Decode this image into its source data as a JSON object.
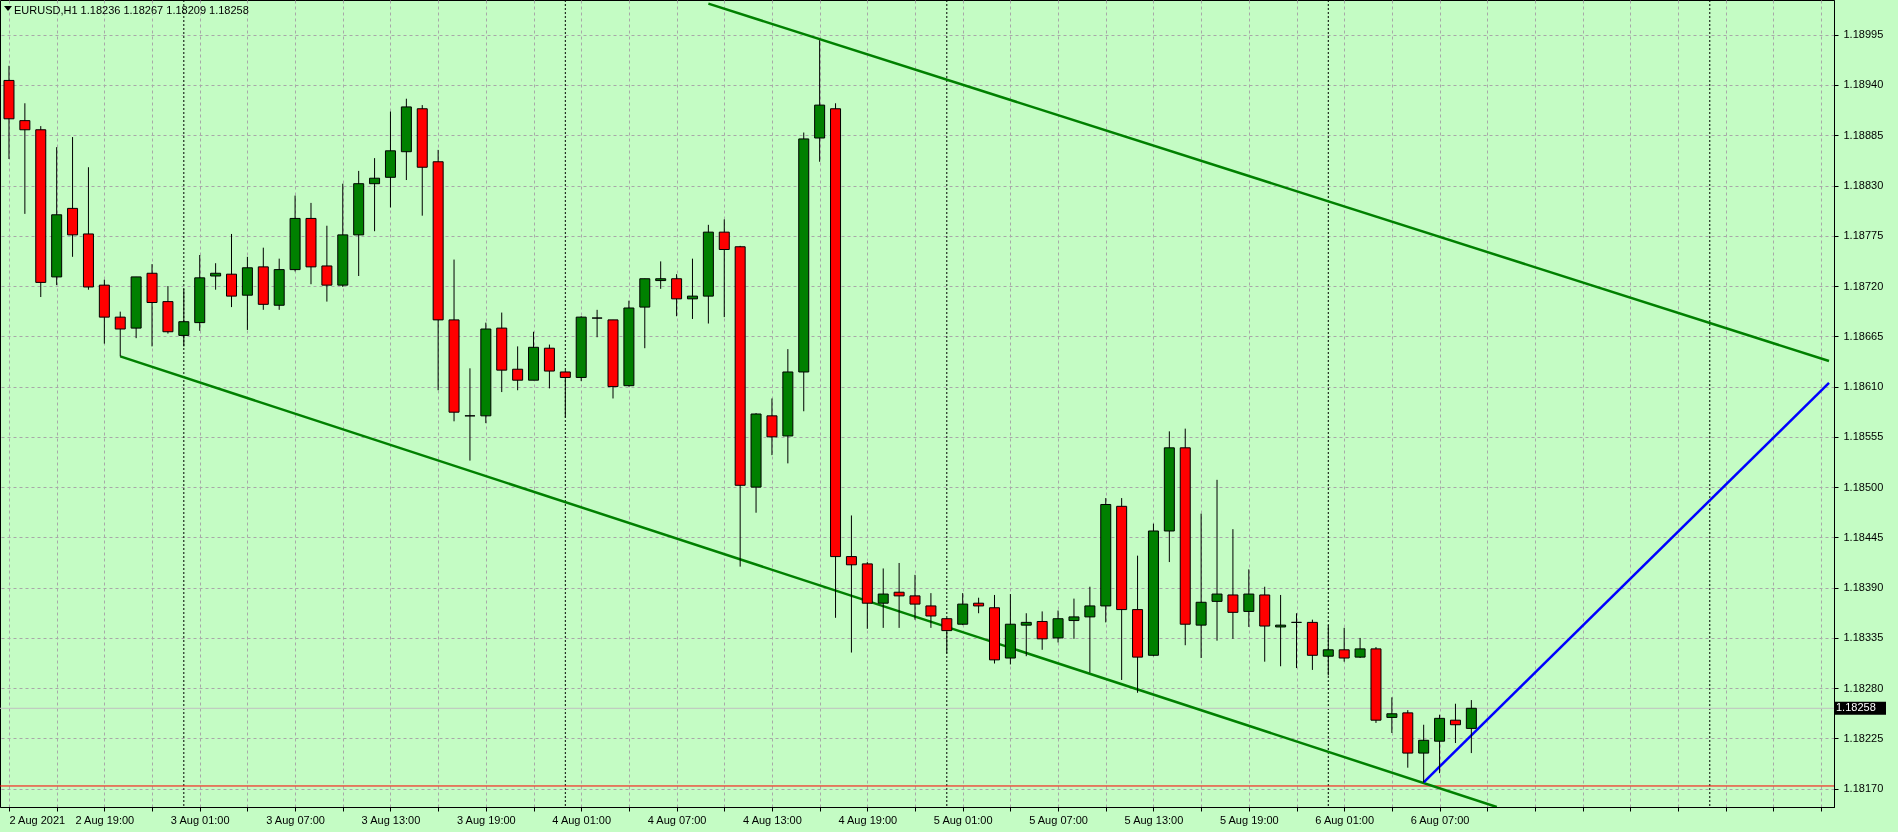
{
  "chart_data": {
    "type": "candlestick",
    "title": "EURUSD,H1  1.18236 1.18267 1.18209 1.18258",
    "x": [
      "2021-08-02T13:00",
      "2021-08-02T14:00",
      "2021-08-02T15:00",
      "2021-08-02T16:00",
      "2021-08-02T17:00",
      "2021-08-02T18:00",
      "2021-08-02T19:00",
      "2021-08-02T20:00",
      "2021-08-02T21:00",
      "2021-08-02T22:00",
      "2021-08-02T23:00",
      "2021-08-03T00:00",
      "2021-08-03T01:00",
      "2021-08-03T02:00",
      "2021-08-03T03:00",
      "2021-08-03T04:00",
      "2021-08-03T05:00",
      "2021-08-03T06:00",
      "2021-08-03T07:00",
      "2021-08-03T08:00",
      "2021-08-03T09:00",
      "2021-08-03T10:00",
      "2021-08-03T11:00",
      "2021-08-03T12:00",
      "2021-08-03T13:00",
      "2021-08-03T14:00",
      "2021-08-03T15:00",
      "2021-08-03T16:00",
      "2021-08-03T17:00",
      "2021-08-03T18:00",
      "2021-08-03T19:00",
      "2021-08-03T20:00",
      "2021-08-03T21:00",
      "2021-08-03T22:00",
      "2021-08-03T23:00",
      "2021-08-04T00:00",
      "2021-08-04T01:00",
      "2021-08-04T02:00",
      "2021-08-04T03:00",
      "2021-08-04T04:00",
      "2021-08-04T05:00",
      "2021-08-04T06:00",
      "2021-08-04T07:00",
      "2021-08-04T08:00",
      "2021-08-04T09:00",
      "2021-08-04T10:00",
      "2021-08-04T11:00",
      "2021-08-04T12:00",
      "2021-08-04T13:00",
      "2021-08-04T14:00",
      "2021-08-04T15:00",
      "2021-08-04T16:00",
      "2021-08-04T17:00",
      "2021-08-04T18:00",
      "2021-08-04T19:00",
      "2021-08-04T20:00",
      "2021-08-04T21:00",
      "2021-08-04T22:00",
      "2021-08-04T23:00",
      "2021-08-05T00:00",
      "2021-08-05T01:00",
      "2021-08-05T02:00",
      "2021-08-05T03:00",
      "2021-08-05T04:00",
      "2021-08-05T05:00",
      "2021-08-05T06:00",
      "2021-08-05T07:00",
      "2021-08-05T08:00",
      "2021-08-05T09:00",
      "2021-08-05T10:00",
      "2021-08-05T11:00",
      "2021-08-05T12:00",
      "2021-08-05T13:00",
      "2021-08-05T14:00",
      "2021-08-05T15:00",
      "2021-08-05T16:00",
      "2021-08-05T17:00",
      "2021-08-05T18:00",
      "2021-08-05T19:00",
      "2021-08-05T20:00",
      "2021-08-05T21:00",
      "2021-08-05T22:00",
      "2021-08-05T23:00",
      "2021-08-06T00:00",
      "2021-08-06T01:00",
      "2021-08-06T02:00",
      "2021-08-06T03:00",
      "2021-08-06T04:00",
      "2021-08-06T05:00",
      "2021-08-06T06:00",
      "2021-08-06T07:00",
      "2021-08-06T08:00",
      "2021-08-06T09:00"
    ],
    "ohlc": [
      [
        1.18945,
        1.18961,
        1.18859,
        1.18903
      ],
      [
        1.18901,
        1.1892,
        1.18799,
        1.18891
      ],
      [
        1.18891,
        1.18895,
        1.18708,
        1.18724
      ],
      [
        1.1873,
        1.18872,
        1.18721,
        1.18798
      ],
      [
        1.18805,
        1.18883,
        1.18752,
        1.18776
      ],
      [
        1.18777,
        1.1885,
        1.18716,
        1.18719
      ],
      [
        1.18721,
        1.18727,
        1.18657,
        1.18686
      ],
      [
        1.18686,
        1.18692,
        1.18643,
        1.18673
      ],
      [
        1.18674,
        1.1873,
        1.18663,
        1.1873
      ],
      [
        1.18734,
        1.18744,
        1.18654,
        1.18702
      ],
      [
        1.18703,
        1.1872,
        1.18668,
        1.1867
      ],
      [
        1.18666,
        1.18717,
        1.18654,
        1.18681
      ],
      [
        1.1868,
        1.18754,
        1.18671,
        1.18729
      ],
      [
        1.18731,
        1.18745,
        1.18716,
        1.18734
      ],
      [
        1.18733,
        1.18777,
        1.18697,
        1.18709
      ],
      [
        1.1871,
        1.18752,
        1.18672,
        1.1874
      ],
      [
        1.18741,
        1.18762,
        1.18694,
        1.187
      ],
      [
        1.18699,
        1.1875,
        1.18694,
        1.18738
      ],
      [
        1.18738,
        1.18819,
        1.18736,
        1.18794
      ],
      [
        1.18794,
        1.18811,
        1.18722,
        1.18741
      ],
      [
        1.18742,
        1.18786,
        1.18703,
        1.18721
      ],
      [
        1.18721,
        1.18832,
        1.18719,
        1.18776
      ],
      [
        1.18776,
        1.18846,
        1.18731,
        1.18832
      ],
      [
        1.18832,
        1.1886,
        1.1878,
        1.18838
      ],
      [
        1.18839,
        1.18911,
        1.18806,
        1.18868
      ],
      [
        1.18867,
        1.18925,
        1.18836,
        1.18916
      ],
      [
        1.18914,
        1.18918,
        1.18797,
        1.1885
      ],
      [
        1.18856,
        1.18869,
        1.18606,
        1.18683
      ],
      [
        1.18683,
        1.18749,
        1.18572,
        1.18582
      ],
      [
        1.18578,
        1.1863,
        1.18529,
        1.18578
      ],
      [
        1.18578,
        1.1868,
        1.1857,
        1.18673
      ],
      [
        1.18674,
        1.18691,
        1.18604,
        1.18628
      ],
      [
        1.18629,
        1.18654,
        1.18606,
        1.18617
      ],
      [
        1.18617,
        1.1867,
        1.18617,
        1.18653
      ],
      [
        1.18652,
        1.18656,
        1.18608,
        1.18627
      ],
      [
        1.18626,
        1.18628,
        1.18576,
        1.1862
      ],
      [
        1.1862,
        1.18687,
        1.18616,
        1.18686
      ],
      [
        1.18685,
        1.18694,
        1.18664,
        1.18685
      ],
      [
        1.18683,
        1.18683,
        1.18597,
        1.1861
      ],
      [
        1.18611,
        1.18704,
        1.1861,
        1.18696
      ],
      [
        1.18697,
        1.18728,
        1.18652,
        1.18728
      ],
      [
        1.18726,
        1.18747,
        1.18717,
        1.18728
      ],
      [
        1.18728,
        1.18733,
        1.18687,
        1.18706
      ],
      [
        1.18706,
        1.1875,
        1.18684,
        1.18709
      ],
      [
        1.18709,
        1.18787,
        1.18679,
        1.18779
      ],
      [
        1.18779,
        1.18793,
        1.18686,
        1.1876
      ],
      [
        1.18763,
        1.18764,
        1.18413,
        1.18502
      ],
      [
        1.185,
        1.18581,
        1.18472,
        1.1858
      ],
      [
        1.18578,
        1.18597,
        1.18535,
        1.18555
      ],
      [
        1.18556,
        1.18651,
        1.18526,
        1.18626
      ],
      [
        1.18626,
        1.18888,
        1.18583,
        1.18881
      ],
      [
        1.18882,
        1.18989,
        1.18856,
        1.18918
      ],
      [
        1.18914,
        1.1892,
        1.18357,
        1.18424
      ],
      [
        1.18424,
        1.18469,
        1.18319,
        1.18415
      ],
      [
        1.18416,
        1.18418,
        1.18345,
        1.18373
      ],
      [
        1.18373,
        1.18411,
        1.18346,
        1.18383
      ],
      [
        1.18385,
        1.18417,
        1.18346,
        1.18381
      ],
      [
        1.18381,
        1.18404,
        1.18355,
        1.18372
      ],
      [
        1.1837,
        1.18384,
        1.18346,
        1.18359
      ],
      [
        1.18356,
        1.18357,
        1.18318,
        1.18343
      ],
      [
        1.1835,
        1.18384,
        1.18349,
        1.18372
      ],
      [
        1.18373,
        1.18379,
        1.18362,
        1.1837
      ],
      [
        1.18368,
        1.18382,
        1.18307,
        1.18311
      ],
      [
        1.18313,
        1.18383,
        1.18306,
        1.1835
      ],
      [
        1.18349,
        1.18362,
        1.18315,
        1.18352
      ],
      [
        1.18353,
        1.18364,
        1.18322,
        1.18334
      ],
      [
        1.18335,
        1.18365,
        1.1833,
        1.18356
      ],
      [
        1.18354,
        1.18378,
        1.18334,
        1.18358
      ],
      [
        1.18358,
        1.18391,
        1.18297,
        1.1837
      ],
      [
        1.1837,
        1.18488,
        1.18352,
        1.18481
      ],
      [
        1.18479,
        1.18488,
        1.18289,
        1.18366
      ],
      [
        1.18366,
        1.18425,
        1.18275,
        1.18314
      ],
      [
        1.18316,
        1.1846,
        1.18315,
        1.18452
      ],
      [
        1.18452,
        1.18561,
        1.18418,
        1.18543
      ],
      [
        1.18543,
        1.18564,
        1.18327,
        1.1835
      ],
      [
        1.18349,
        1.18471,
        1.18313,
        1.18374
      ],
      [
        1.18375,
        1.18508,
        1.18332,
        1.18383
      ],
      [
        1.18382,
        1.18454,
        1.18334,
        1.18363
      ],
      [
        1.18364,
        1.1841,
        1.18347,
        1.18383
      ],
      [
        1.18382,
        1.18391,
        1.18309,
        1.18348
      ],
      [
        1.18347,
        1.18382,
        1.18304,
        1.18349
      ],
      [
        1.18352,
        1.18362,
        1.18302,
        1.18352
      ],
      [
        1.18352,
        1.18355,
        1.183,
        1.18316
      ],
      [
        1.18315,
        1.18349,
        1.18294,
        1.18322
      ],
      [
        1.18322,
        1.18346,
        1.18309,
        1.18313
      ],
      [
        1.18314,
        1.18335,
        1.18313,
        1.18323
      ],
      [
        1.18323,
        1.18325,
        1.18242,
        1.18245
      ],
      [
        1.18248,
        1.1827,
        1.18231,
        1.18252
      ],
      [
        1.18253,
        1.18256,
        1.18193,
        1.18209
      ],
      [
        1.18209,
        1.1824,
        1.18177,
        1.18223
      ],
      [
        1.18222,
        1.18251,
        1.18187,
        1.18247
      ],
      [
        1.18245,
        1.18263,
        1.1822,
        1.1824
      ],
      [
        1.18236,
        1.18267,
        1.18209,
        1.18258
      ]
    ],
    "colors": [
      "#ff0000",
      "#ff0000",
      "#ff0000",
      "#008000",
      "#ff0000",
      "#ff0000",
      "#ff0000",
      "#ff0000",
      "#008000",
      "#ff0000",
      "#ff0000",
      "#008000",
      "#008000",
      "#008000",
      "#ff0000",
      "#008000",
      "#ff0000",
      "#008000",
      "#008000",
      "#ff0000",
      "#ff0000",
      "#008000",
      "#008000",
      "#008000",
      "#008000",
      "#008000",
      "#ff0000",
      "#ff0000",
      "#ff0000",
      "#000000",
      "#008000",
      "#ff0000",
      "#ff0000",
      "#008000",
      "#ff0000",
      "#ff0000",
      "#008000",
      "#000000",
      "#ff0000",
      "#008000",
      "#008000",
      "#008000",
      "#ff0000",
      "#008000",
      "#008000",
      "#ff0000",
      "#ff0000",
      "#008000",
      "#ff0000",
      "#008000",
      "#008000",
      "#008000",
      "#ff0000",
      "#ff0000",
      "#ff0000",
      "#008000",
      "#ff0000",
      "#ff0000",
      "#ff0000",
      "#ff0000",
      "#008000",
      "#ff0000",
      "#ff0000",
      "#008000",
      "#008000",
      "#ff0000",
      "#008000",
      "#008000",
      "#008000",
      "#008000",
      "#ff0000",
      "#ff0000",
      "#008000",
      "#008000",
      "#ff0000",
      "#008000",
      "#008000",
      "#ff0000",
      "#008000",
      "#ff0000",
      "#008000",
      "#000000",
      "#ff0000",
      "#008000",
      "#ff0000",
      "#008000",
      "#ff0000",
      "#008000",
      "#ff0000",
      "#008000",
      "#008000",
      "#ff0000",
      "#008000"
    ],
    "series": [
      {
        "type": "line",
        "color": "#008000",
        "x": [
          "2021-08-04T09:00",
          "2021-08-07T07:30"
        ],
        "values": [
          1.19029,
          1.18638
        ]
      },
      {
        "type": "line",
        "color": "#008000",
        "x": [
          "2021-08-02T20:00",
          "2021-08-06T10:36"
        ],
        "values": [
          1.18643,
          1.1815
        ]
      },
      {
        "type": "line",
        "color": "#0000ff",
        "x": [
          "2021-08-06T06:00",
          "2021-08-07T07:30"
        ],
        "values": [
          1.18177,
          1.18614
        ]
      }
    ],
    "xlim": [
      "2021-08-02T12:45",
      "2021-08-07T07:30"
    ],
    "xticks": [
      {
        "value": "2021-08-02T13:00",
        "label": "2 Aug 2021"
      },
      {
        "value": "2021-08-02T16:00",
        "label": null
      },
      {
        "value": "2021-08-02T19:00",
        "label": "2 Aug 19:00"
      },
      {
        "value": "2021-08-02T22:00",
        "label": null
      },
      {
        "value": "2021-08-03T01:00",
        "label": "3 Aug 01:00"
      },
      {
        "value": "2021-08-03T04:00",
        "label": null
      },
      {
        "value": "2021-08-03T07:00",
        "label": "3 Aug 07:00"
      },
      {
        "value": "2021-08-03T10:00",
        "label": null
      },
      {
        "value": "2021-08-03T13:00",
        "label": "3 Aug 13:00"
      },
      {
        "value": "2021-08-03T16:00",
        "label": null
      },
      {
        "value": "2021-08-03T19:00",
        "label": "3 Aug 19:00"
      },
      {
        "value": "2021-08-03T22:00",
        "label": null
      },
      {
        "value": "2021-08-04T01:00",
        "label": "4 Aug 01:00"
      },
      {
        "value": "2021-08-04T04:00",
        "label": null
      },
      {
        "value": "2021-08-04T07:00",
        "label": "4 Aug 07:00"
      },
      {
        "value": "2021-08-04T10:00",
        "label": null
      },
      {
        "value": "2021-08-04T13:00",
        "label": "4 Aug 13:00"
      },
      {
        "value": "2021-08-04T16:00",
        "label": null
      },
      {
        "value": "2021-08-04T19:00",
        "label": "4 Aug 19:00"
      },
      {
        "value": "2021-08-04T22:00",
        "label": null
      },
      {
        "value": "2021-08-05T01:00",
        "label": "5 Aug 01:00"
      },
      {
        "value": "2021-08-05T04:00",
        "label": null
      },
      {
        "value": "2021-08-05T07:00",
        "label": "5 Aug 07:00"
      },
      {
        "value": "2021-08-05T10:00",
        "label": null
      },
      {
        "value": "2021-08-05T13:00",
        "label": "5 Aug 13:00"
      },
      {
        "value": "2021-08-05T16:00",
        "label": null
      },
      {
        "value": "2021-08-05T19:00",
        "label": "5 Aug 19:00"
      },
      {
        "value": "2021-08-05T22:00",
        "label": null
      },
      {
        "value": "2021-08-06T01:00",
        "label": "6 Aug 01:00"
      },
      {
        "value": "2021-08-06T04:00",
        "label": null
      },
      {
        "value": "2021-08-06T07:00",
        "label": "6 Aug 07:00"
      },
      {
        "value": "2021-08-06T10:00",
        "label": null
      },
      {
        "value": "2021-08-06T13:00",
        "label": null
      },
      {
        "value": "2021-08-06T16:00",
        "label": null
      },
      {
        "value": "2021-08-06T19:00",
        "label": null
      },
      {
        "value": "2021-08-06T22:00",
        "label": null
      },
      {
        "value": "2021-08-07T01:00",
        "label": null
      },
      {
        "value": "2021-08-07T04:00",
        "label": null
      },
      {
        "value": "2021-08-07T07:00",
        "label": null
      }
    ],
    "ylim": [
      1.1815,
      1.19033
    ],
    "yticks": [
      {
        "value": 1.1817,
        "label": "1.18170"
      },
      {
        "value": 1.18225,
        "label": "1.18225"
      },
      {
        "value": 1.1828,
        "label": "1.18280"
      },
      {
        "value": 1.18335,
        "label": "1.18335"
      },
      {
        "value": 1.1839,
        "label": "1.18390"
      },
      {
        "value": 1.18445,
        "label": "1.18445"
      },
      {
        "value": 1.185,
        "label": "1.18500"
      },
      {
        "value": 1.18555,
        "label": "1.18555"
      },
      {
        "value": 1.1861,
        "label": "1.18610"
      },
      {
        "value": 1.18665,
        "label": "1.18665"
      },
      {
        "value": 1.1872,
        "label": "1.18720"
      },
      {
        "value": 1.18775,
        "label": "1.18775"
      },
      {
        "value": 1.1883,
        "label": "1.18830"
      },
      {
        "value": 1.18885,
        "label": "1.18885"
      },
      {
        "value": 1.1894,
        "label": "1.18940"
      },
      {
        "value": 1.18995,
        "label": "1.18995"
      }
    ],
    "ref_lines": [
      {
        "axis": "x",
        "value": "2021-08-03T00:00",
        "color": "#000000",
        "line_style": "dotted"
      },
      {
        "axis": "x",
        "value": "2021-08-04T00:00",
        "color": "#000000",
        "line_style": "dotted"
      },
      {
        "axis": "x",
        "value": "2021-08-05T00:00",
        "color": "#000000",
        "line_style": "dotted"
      },
      {
        "axis": "x",
        "value": "2021-08-06T00:00",
        "color": "#000000",
        "line_style": "dotted"
      },
      {
        "axis": "x",
        "value": "2021-08-07T00:00",
        "color": "#000000",
        "line_style": "dotted"
      },
      {
        "axis": "y",
        "value": 1.18258,
        "label": "1.18258",
        "color": "#c0c0c0",
        "line_style": "solid"
      },
      {
        "axis": "y",
        "value": 1.18173,
        "color": "#ff0000",
        "line_style": "solid"
      }
    ],
    "grid": true
  }
}
